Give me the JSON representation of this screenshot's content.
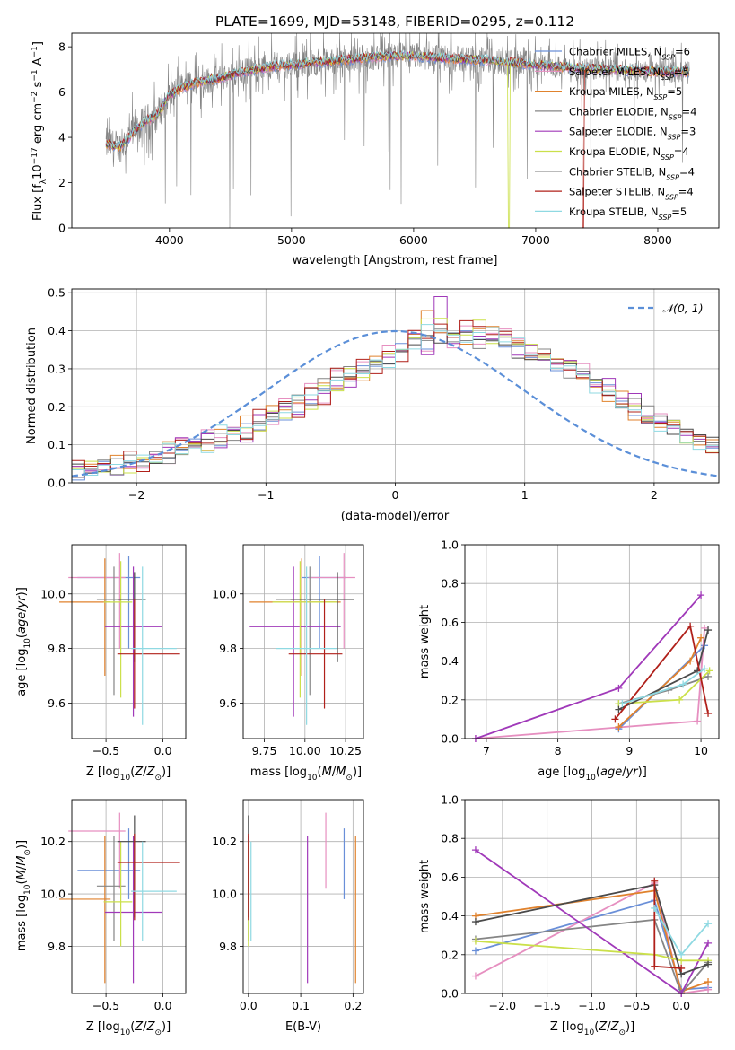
{
  "figure_title": "PLATE=1699, MJD=53148, FIBERID=0295, z=0.112",
  "colors": {
    "Chabrier MILES": "#6a8fd8",
    "Salpeter MILES": "#e68fc0",
    "Kroupa MILES": "#e0822d",
    "Chabrier ELODIE": "#858585",
    "Salpeter ELODIE": "#a039b9",
    "Kroupa ELODIE": "#cbe04a",
    "Chabrier STELIB": "#4a4a4a",
    "Salpeter STELIB": "#b0201a",
    "Kroupa STELIB": "#8fd9e2",
    "normal": "#5b8fd8"
  },
  "chart_data": [
    {
      "id": "spectrum",
      "type": "line",
      "xlabel": "wavelength [Angstrom, rest frame]",
      "ylabel": "Flux [f",
      "ylabel_sub": "λ",
      "ylabel_rest": "10",
      "ylabel_sup": "−17",
      "ylabel_tail": " erg cm",
      "xlim": [
        3200,
        8500
      ],
      "ylim": [
        0,
        8.6
      ],
      "xticks": [
        4000,
        5000,
        6000,
        7000,
        8000
      ],
      "yticks": [
        0,
        2,
        4,
        6,
        8
      ],
      "legend_position": "top-right",
      "legend": [
        {
          "name": "Chabrier MILES, N",
          "sub": "SSP",
          "tail": "=6"
        },
        {
          "name": "Salpeter MILES, N",
          "sub": "SSP",
          "tail": "=5"
        },
        {
          "name": "Kroupa MILES, N",
          "sub": "SSP",
          "tail": "=5"
        },
        {
          "name": "Chabrier ELODIE, N",
          "sub": "SSP",
          "tail": "=4"
        },
        {
          "name": "Salpeter ELODIE, N",
          "sub": "SSP",
          "tail": "=3"
        },
        {
          "name": "Kroupa ELODIE, N",
          "sub": "SSP",
          "tail": "=4"
        },
        {
          "name": "Chabrier STELIB, N",
          "sub": "SSP",
          "tail": "=4"
        },
        {
          "name": "Salpeter STELIB, N",
          "sub": "SSP",
          "tail": "=4"
        },
        {
          "name": "Kroupa STELIB, N",
          "sub": "SSP",
          "tail": "=5"
        }
      ],
      "continuum": {
        "x": [
          3480,
          3600,
          3700,
          3800,
          3900,
          4000,
          4100,
          4200,
          4300,
          4400,
          4600,
          4800,
          5000,
          5200,
          5400,
          5600,
          5800,
          6000,
          6200,
          6400,
          6600,
          6800,
          7000,
          7200,
          7400,
          7600,
          7800,
          8000,
          8250
        ],
        "y": [
          3.7,
          3.6,
          4.2,
          4.7,
          5.0,
          5.9,
          6.2,
          6.4,
          6.5,
          6.6,
          6.9,
          7.1,
          7.2,
          7.3,
          7.4,
          7.5,
          7.6,
          7.6,
          7.5,
          7.45,
          7.4,
          7.3,
          7.2,
          7.1,
          7.05,
          7.0,
          6.95,
          6.9,
          6.9
        ]
      }
    },
    {
      "id": "residuals",
      "type": "histogram",
      "xlabel": "(data-model)/error",
      "ylabel": "Normed distribution",
      "xlim": [
        -2.5,
        2.5
      ],
      "ylim": [
        0,
        0.51
      ],
      "xticks": [
        -2,
        -1,
        0,
        1,
        2
      ],
      "yticks": [
        0.0,
        0.1,
        0.2,
        0.3,
        0.4,
        0.5
      ],
      "grid": true,
      "legend": "𝒩(0, 1)",
      "legend_position": "top-right",
      "bin_width": 0.1,
      "bins_start": -2.5,
      "series_values": [
        [
          0.03,
          0.035,
          0.04,
          0.045,
          0.05,
          0.055,
          0.07,
          0.075,
          0.09,
          0.1,
          0.11,
          0.12,
          0.13,
          0.14,
          0.155,
          0.17,
          0.19,
          0.21,
          0.23,
          0.25,
          0.27,
          0.29,
          0.31,
          0.32,
          0.33,
          0.35,
          0.36,
          0.37,
          0.38,
          0.39,
          0.38,
          0.37,
          0.37,
          0.36,
          0.35,
          0.34,
          0.33,
          0.31,
          0.3,
          0.28,
          0.26,
          0.24,
          0.22,
          0.2,
          0.18,
          0.16,
          0.14,
          0.13,
          0.11,
          0.1
        ],
        [
          0.035,
          0.03,
          0.045,
          0.04,
          0.06,
          0.05,
          0.08,
          0.07,
          0.1,
          0.09,
          0.12,
          0.11,
          0.14,
          0.13,
          0.17,
          0.16,
          0.2,
          0.19,
          0.24,
          0.23,
          0.28,
          0.26,
          0.32,
          0.3,
          0.35,
          0.33,
          0.38,
          0.36,
          0.4,
          0.38,
          0.42,
          0.39,
          0.38,
          0.4,
          0.36,
          0.35,
          0.34,
          0.32,
          0.3,
          0.29,
          0.27,
          0.25,
          0.22,
          0.21,
          0.18,
          0.17,
          0.14,
          0.13,
          0.12,
          0.1
        ],
        [
          0.025,
          0.04,
          0.035,
          0.05,
          0.045,
          0.065,
          0.06,
          0.085,
          0.08,
          0.11,
          0.1,
          0.13,
          0.12,
          0.16,
          0.15,
          0.18,
          0.17,
          0.22,
          0.21,
          0.26,
          0.25,
          0.3,
          0.29,
          0.33,
          0.32,
          0.36,
          0.37,
          0.43,
          0.41,
          0.4,
          0.38,
          0.41,
          0.39,
          0.37,
          0.38,
          0.34,
          0.33,
          0.31,
          0.3,
          0.27,
          0.26,
          0.23,
          0.22,
          0.19,
          0.18,
          0.15,
          0.14,
          0.12,
          0.11,
          0.09
        ]
      ]
    },
    {
      "id": "age-vs-Z",
      "type": "errorbar",
      "xlabel": "Z [log",
      "xlabel_sub": "10",
      "xlabel_tail": "(Z/Z",
      "ylabel": "age  [log",
      "ylabel_sub": "10",
      "ylabel_tail": "(age/yr)]",
      "xlim": [
        -0.8,
        0.2
      ],
      "ylim": [
        9.47,
        10.18
      ],
      "xticks": [
        -0.5,
        0.0
      ],
      "yticks": [
        9.6,
        9.8,
        10.0
      ]
    },
    {
      "id": "age-vs-mass",
      "type": "errorbar",
      "xlabel": "mass [log",
      "xlabel_sub": "10",
      "xlabel_tail": "(M/M",
      "xlim": [
        9.62,
        10.36
      ],
      "ylim": [
        9.47,
        10.18
      ],
      "xticks": [
        9.75,
        10.0,
        10.25
      ],
      "yticks": [
        9.6,
        9.8,
        10.0
      ]
    },
    {
      "id": "mass-vs-Z",
      "type": "errorbar",
      "xlabel": "Z [log",
      "xlabel_sub": "10",
      "xlabel_tail": "(Z/Z",
      "ylabel": "mass [log",
      "ylabel_sub": "10",
      "ylabel_tail": "(M/M",
      "xlim": [
        -0.8,
        0.2
      ],
      "ylim": [
        9.62,
        10.36
      ],
      "xticks": [
        -0.5,
        0.0
      ],
      "yticks": [
        9.8,
        10.0,
        10.2
      ]
    },
    {
      "id": "mass-vs-ebv",
      "type": "errorbar",
      "xlabel": "E(B-V)",
      "xlim": [
        -0.01,
        0.22
      ],
      "ylim": [
        9.62,
        10.36
      ],
      "xticks": [
        0.0,
        0.1,
        0.2
      ],
      "yticks": [
        9.8,
        10.0,
        10.2
      ]
    },
    {
      "id": "weight-vs-age",
      "type": "line",
      "xlabel": "age  [log",
      "xlabel_sub": "10",
      "xlabel_tail": "(age/yr)]",
      "ylabel": "mass weight",
      "xlim": [
        6.7,
        10.25
      ],
      "ylim": [
        0,
        1.0
      ],
      "xticks": [
        7,
        8,
        9,
        10
      ],
      "yticks": [
        0.0,
        0.2,
        0.4,
        0.6,
        0.8,
        1.0
      ],
      "grid": true
    },
    {
      "id": "weight-vs-Z",
      "type": "line",
      "xlabel": "Z [log",
      "xlabel_sub": "10",
      "xlabel_tail": "(Z/Z",
      "ylabel": "mass weight",
      "xlim": [
        -2.42,
        0.42
      ],
      "ylim": [
        0,
        1.0
      ],
      "xticks": [
        -2.0,
        -1.5,
        -1.0,
        -0.5,
        0.0
      ],
      "yticks": [
        0.0,
        0.2,
        0.4,
        0.6,
        0.8,
        1.0
      ],
      "grid": true
    }
  ],
  "models": [
    {
      "name": "Chabrier MILES",
      "Z": -0.3,
      "Zerr": [
        -0.45,
        0.1
      ],
      "age": 10.06,
      "ageErr": [
        9.8,
        10.14
      ],
      "mass": 10.09,
      "massErr": [
        9.98,
        10.25
      ],
      "ebv": 0.183,
      "ebvErr": [
        0.005,
        0.005
      ],
      "w_age": [
        [
          8.85,
          0.05
        ],
        [
          10.05,
          0.48
        ]
      ],
      "w_Z": [
        [
          -2.3,
          0.22
        ],
        [
          -0.3,
          0.48
        ],
        [
          0.0,
          0.02
        ],
        [
          0.3,
          0.03
        ]
      ]
    },
    {
      "name": "Salpeter MILES",
      "Z": -0.38,
      "Zerr": [
        -0.45,
        0.05
      ],
      "age": 10.06,
      "ageErr": [
        9.8,
        10.15
      ],
      "mass": 10.24,
      "massErr": [
        10.02,
        10.31
      ],
      "ebv": 0.148,
      "ebvErr": [
        0.005,
        0.005
      ],
      "w_age": [
        [
          6.85,
          0.0
        ],
        [
          9.95,
          0.09
        ],
        [
          10.05,
          0.57
        ]
      ],
      "w_Z": [
        [
          -2.3,
          0.09
        ],
        [
          -0.3,
          0.57
        ],
        [
          0.0,
          0.0
        ],
        [
          0.3,
          0.02
        ]
      ]
    },
    {
      "name": "Kroupa MILES",
      "Z": -0.51,
      "Zerr": [
        -0.4,
        0.05
      ],
      "age": 9.97,
      "ageErr": [
        9.7,
        10.13
      ],
      "mass": 9.98,
      "massErr": [
        9.66,
        10.22
      ],
      "ebv": 0.205,
      "ebvErr": [
        0.005,
        0.005
      ],
      "w_age": [
        [
          8.85,
          0.06
        ],
        [
          9.85,
          0.4
        ],
        [
          10.0,
          0.52
        ]
      ],
      "w_Z": [
        [
          -2.3,
          0.4
        ],
        [
          -0.3,
          0.53
        ],
        [
          0.0,
          0.01
        ],
        [
          0.3,
          0.06
        ]
      ]
    },
    {
      "name": "Chabrier ELODIE",
      "Z": -0.43,
      "Zerr": [
        -0.15,
        0.1
      ],
      "age": 9.98,
      "ageErr": [
        9.63,
        10.1
      ],
      "mass": 10.03,
      "massErr": [
        9.82,
        10.22
      ],
      "ebv": 0.0,
      "ebvErr": [
        0.0,
        0.0
      ],
      "w_age": [
        [
          8.85,
          0.18
        ],
        [
          9.55,
          0.25
        ],
        [
          10.1,
          0.32
        ]
      ],
      "w_Z": [
        [
          -2.3,
          0.28
        ],
        [
          -0.3,
          0.38
        ],
        [
          0.0,
          0.0
        ],
        [
          0.3,
          0.16
        ]
      ]
    },
    {
      "name": "Salpeter ELODIE",
      "Z": -0.26,
      "Zerr": [
        -0.25,
        0.25
      ],
      "age": 9.88,
      "ageErr": [
        9.55,
        10.1
      ],
      "mass": 9.93,
      "massErr": [
        9.66,
        10.22
      ],
      "ebv": 0.113,
      "ebvErr": [
        0.005,
        0.005
      ],
      "w_age": [
        [
          6.85,
          0.0
        ],
        [
          8.85,
          0.26
        ],
        [
          10.0,
          0.74
        ]
      ],
      "w_Z": [
        [
          -2.3,
          0.74
        ],
        [
          0.0,
          0.0
        ],
        [
          0.3,
          0.26
        ]
      ]
    },
    {
      "name": "Kroupa ELODIE",
      "Z": -0.37,
      "Zerr": [
        -0.15,
        0.1
      ],
      "age": 9.97,
      "ageErr": [
        9.62,
        10.12
      ],
      "mass": 9.97,
      "massErr": [
        9.8,
        10.2
      ],
      "ebv": 0.0,
      "ebvErr": [
        0.0,
        0.0
      ],
      "w_age": [
        [
          8.85,
          0.18
        ],
        [
          9.7,
          0.2
        ],
        [
          10.12,
          0.35
        ]
      ],
      "w_Z": [
        [
          -2.3,
          0.27
        ],
        [
          -0.3,
          0.2
        ],
        [
          0.0,
          0.17
        ],
        [
          0.3,
          0.17
        ]
      ]
    },
    {
      "name": "Chabrier STELIB",
      "Z": -0.25,
      "Zerr": [
        -0.15,
        0.1
      ],
      "age": 9.98,
      "ageErr": [
        9.75,
        10.08
      ],
      "mass": 10.2,
      "massErr": [
        9.91,
        10.3
      ],
      "ebv": 0.0,
      "ebvErr": [
        0.0,
        0.0
      ],
      "w_age": [
        [
          8.85,
          0.15
        ],
        [
          9.95,
          0.35
        ],
        [
          10.1,
          0.56
        ]
      ],
      "w_Z": [
        [
          -2.3,
          0.37
        ],
        [
          -0.3,
          0.56
        ],
        [
          0.0,
          0.1
        ],
        [
          0.3,
          0.15
        ]
      ]
    },
    {
      "name": "Salpeter STELIB",
      "Z": -0.25,
      "Zerr": [
        -0.15,
        0.4
      ],
      "age": 9.78,
      "ageErr": [
        9.58,
        9.98
      ],
      "mass": 10.12,
      "massErr": [
        9.9,
        10.23
      ],
      "ebv": 0.0,
      "ebvErr": [
        0.0,
        0.0
      ],
      "w_age": [
        [
          8.8,
          0.1
        ],
        [
          9.85,
          0.58
        ],
        [
          10.1,
          0.13
        ]
      ],
      "w_Z": [
        [
          -0.3,
          0.58
        ],
        [
          -0.3,
          0.14
        ],
        [
          0.0,
          0.13
        ]
      ]
    },
    {
      "name": "Kroupa STELIB",
      "Z": -0.18,
      "Zerr": [
        -0.1,
        0.3
      ],
      "age": 9.8,
      "ageErr": [
        9.52,
        10.1
      ],
      "mass": 10.01,
      "massErr": [
        9.82,
        10.2
      ],
      "ebv": 0.005,
      "ebvErr": [
        0.005,
        0.005
      ],
      "w_age": [
        [
          8.9,
          0.18
        ],
        [
          9.75,
          0.28
        ],
        [
          10.05,
          0.36
        ]
      ],
      "w_Z": [
        [
          -0.3,
          0.44
        ],
        [
          0.0,
          0.2
        ],
        [
          0.3,
          0.36
        ]
      ]
    }
  ]
}
